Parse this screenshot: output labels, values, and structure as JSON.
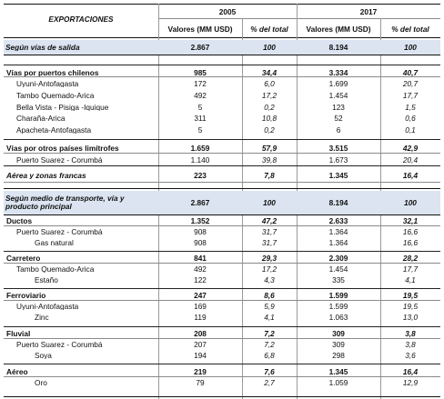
{
  "header": {
    "title": "EXPORTACIONES",
    "year1": "2005",
    "year2": "2017",
    "col_valores": "Valores (MM USD)",
    "col_pct": "% del total"
  },
  "rows": [
    {
      "label": "Según vías de salida",
      "v1": "2.867",
      "p1": "100",
      "v2": "8.194",
      "p2": "100",
      "style": "section"
    },
    {
      "label": "Vías por puertos chilenos",
      "v1": "985",
      "p1": "34,4",
      "v2": "3.334",
      "p2": "40,7",
      "style": "group"
    },
    {
      "label": "Uyuni-Antofagasta",
      "v1": "172",
      "p1": "6,0",
      "v2": "1.699",
      "p2": "20,7",
      "style": "item"
    },
    {
      "label": "Tambo Quemado-Arica",
      "v1": "492",
      "p1": "17,2",
      "v2": "1.454",
      "p2": "17,7",
      "style": "item"
    },
    {
      "label": "Bella Vista - Pisiga -Iquique",
      "v1": "5",
      "p1": "0,2",
      "v2": "123",
      "p2": "1,5",
      "style": "item"
    },
    {
      "label": "Charaña-Arica",
      "v1": "311",
      "p1": "10,8",
      "v2": "52",
      "p2": "0,6",
      "style": "item"
    },
    {
      "label": "Apacheta-Antofagasta",
      "v1": "5",
      "p1": "0,2",
      "v2": "6",
      "p2": "0,1",
      "style": "item"
    },
    {
      "label": "Vías por otros países limítrofes",
      "v1": "1.659",
      "p1": "57,9",
      "v2": "3.515",
      "p2": "42,9",
      "style": "group"
    },
    {
      "label": "Puerto Suarez - Corumbá",
      "v1": "1.140",
      "p1": "39,8",
      "v2": "1.673",
      "p2": "20,4",
      "style": "item"
    },
    {
      "label": "Aérea y zonas francas",
      "v1": "223",
      "p1": "7,8",
      "v2": "1.345",
      "p2": "16,4",
      "style": "groupital"
    },
    {
      "label": "Según medio de transporte, vía y producto principal",
      "v1": "2.867",
      "p1": "100",
      "v2": "8.194",
      "p2": "100",
      "style": "section2"
    },
    {
      "label": "Ductos",
      "v1": "1.352",
      "p1": "47,2",
      "v2": "2.633",
      "p2": "32,1",
      "style": "group"
    },
    {
      "label": "Puerto Suarez - Corumbá",
      "v1": "908",
      "p1": "31,7",
      "v2": "1.364",
      "p2": "16,6",
      "style": "item"
    },
    {
      "label": "Gas natural",
      "v1": "908",
      "p1": "31,7",
      "v2": "1.364",
      "p2": "16,6",
      "style": "product"
    },
    {
      "label": "Carretero",
      "v1": "841",
      "p1": "29,3",
      "v2": "2.309",
      "p2": "28,2",
      "style": "group"
    },
    {
      "label": "Tambo Quemado-Arica",
      "v1": "492",
      "p1": "17,2",
      "v2": "1.454",
      "p2": "17,7",
      "style": "item"
    },
    {
      "label": "Estaño",
      "v1": "122",
      "p1": "4,3",
      "v2": "335",
      "p2": "4,1",
      "style": "product"
    },
    {
      "label": "Ferroviario",
      "v1": "247",
      "p1": "8,6",
      "v2": "1.599",
      "p2": "19,5",
      "style": "group"
    },
    {
      "label": "Uyuni-Antofagasta",
      "v1": "169",
      "p1": "5,9",
      "v2": "1.599",
      "p2": "19,5",
      "style": "item"
    },
    {
      "label": "Zinc",
      "v1": "119",
      "p1": "4,1",
      "v2": "1.063",
      "p2": "13,0",
      "style": "product"
    },
    {
      "label": "Fluvial",
      "v1": "208",
      "p1": "7,2",
      "v2": "309",
      "p2": "3,8",
      "style": "group"
    },
    {
      "label": "Puerto Suarez - Corumbá",
      "v1": "207",
      "p1": "7,2",
      "v2": "309",
      "p2": "3,8",
      "style": "item"
    },
    {
      "label": "Soya",
      "v1": "194",
      "p1": "6,8",
      "v2": "298",
      "p2": "3,6",
      "style": "product"
    },
    {
      "label": "Aéreo",
      "v1": "219",
      "p1": "7,6",
      "v2": "1.345",
      "p2": "16,4",
      "style": "group"
    },
    {
      "label": "Oro",
      "v1": "79",
      "p1": "2,7",
      "v2": "1.059",
      "p2": "12,9",
      "style": "product"
    }
  ]
}
